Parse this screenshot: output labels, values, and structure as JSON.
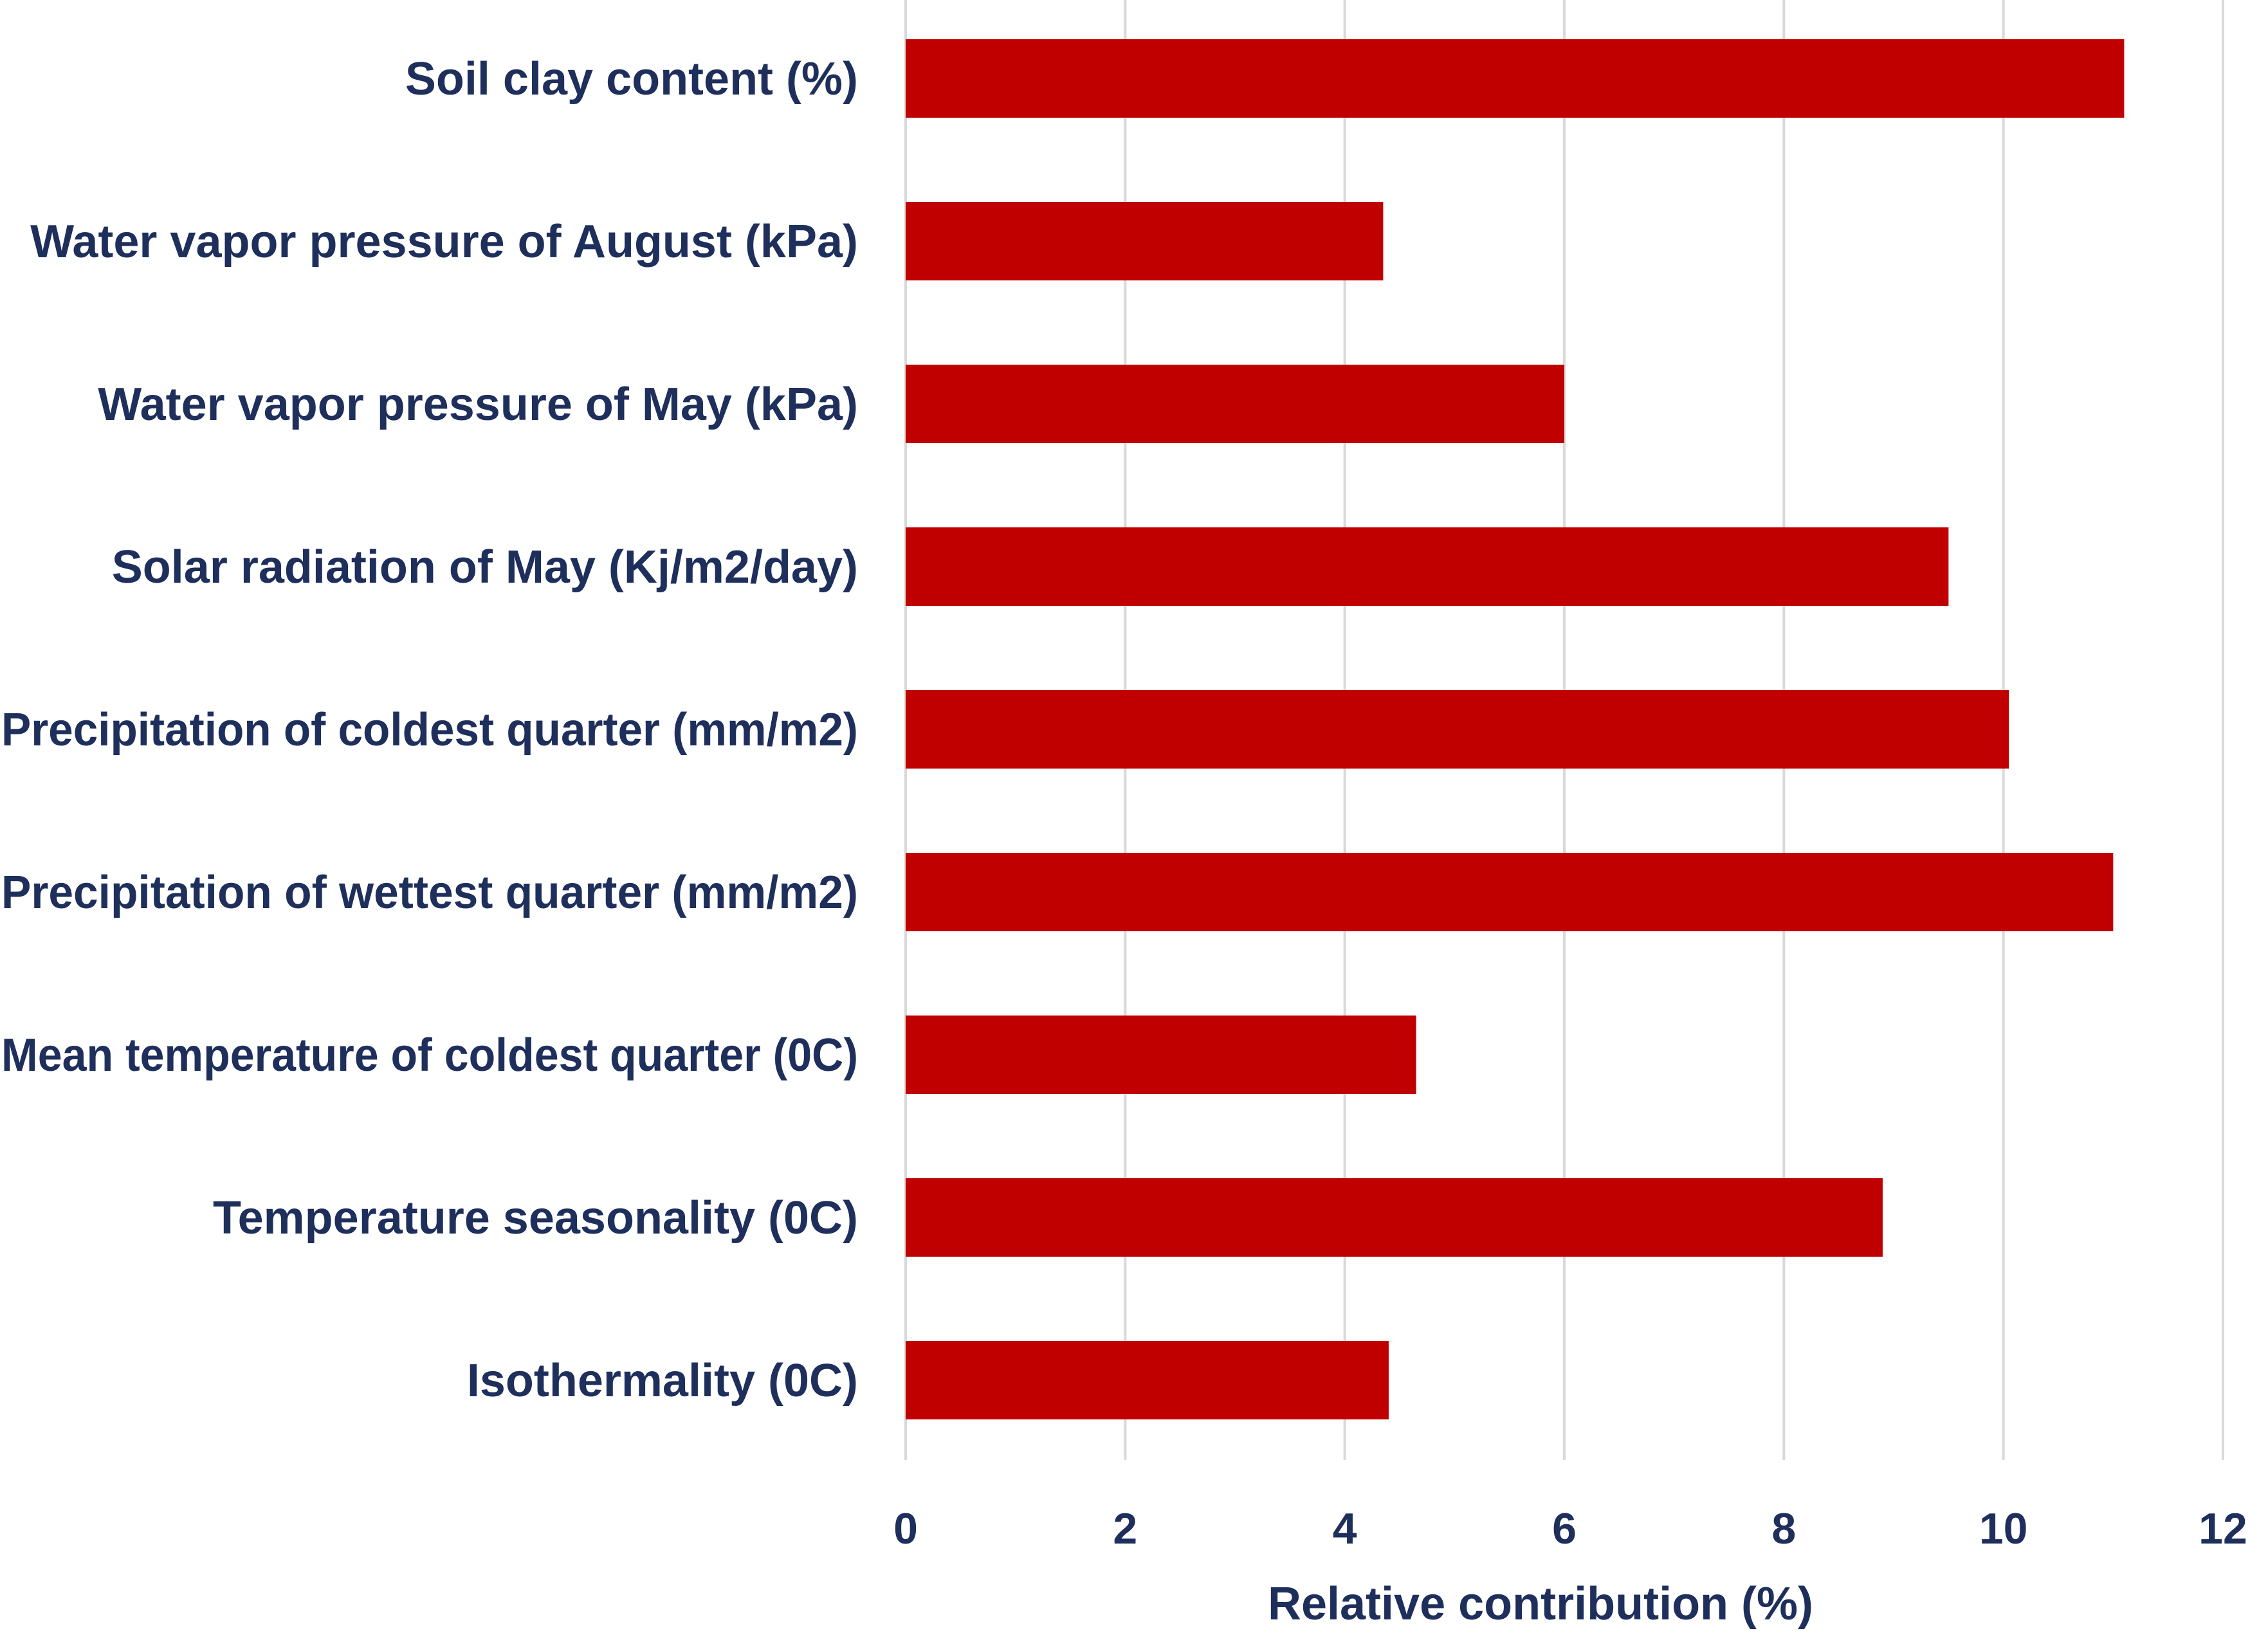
{
  "chart_data": {
    "type": "bar",
    "orientation": "horizontal",
    "categories": [
      "Soil clay content (%)",
      "Water vapor pressure of August (kPa)",
      "Water vapor pressure of May (kPa)",
      "Solar radiation of May (Kj/m2/day)",
      "Precipitation of coldest quarter (mm/m2)",
      "Precipitation of wettest quarter (mm/m2)",
      "Mean temperature of coldest quarter (0C)",
      "Temperature seasonality (0C)",
      "Isothermality (0C)"
    ],
    "values": [
      11.1,
      4.35,
      6.0,
      9.5,
      10.05,
      11.0,
      4.65,
      8.9,
      4.4
    ],
    "xlabel": "Relative contribution (%)",
    "ylabel": "",
    "xlim": [
      0,
      12
    ],
    "xticks": [
      0,
      2,
      4,
      6,
      8,
      10,
      12
    ],
    "grid": "vertical",
    "bar_color": "#c00000",
    "legend": "none"
  },
  "colors": {
    "text": "#1f2f5c",
    "bar": "#c00000",
    "grid": "#d9d9d9"
  }
}
